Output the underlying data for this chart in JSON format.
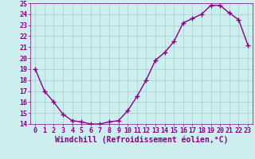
{
  "x": [
    0,
    1,
    2,
    3,
    4,
    5,
    6,
    7,
    8,
    9,
    10,
    11,
    12,
    13,
    14,
    15,
    16,
    17,
    18,
    19,
    20,
    21,
    22,
    23
  ],
  "y": [
    19.0,
    17.0,
    16.0,
    14.9,
    14.3,
    14.2,
    14.0,
    14.0,
    14.2,
    14.3,
    15.2,
    16.5,
    18.0,
    19.8,
    20.5,
    21.5,
    23.2,
    23.6,
    24.0,
    24.8,
    24.8,
    24.1,
    23.5,
    21.2
  ],
  "ylim": [
    14,
    25
  ],
  "xlim": [
    -0.5,
    23.5
  ],
  "yticks": [
    14,
    15,
    16,
    17,
    18,
    19,
    20,
    21,
    22,
    23,
    24,
    25
  ],
  "xticks": [
    0,
    1,
    2,
    3,
    4,
    5,
    6,
    7,
    8,
    9,
    10,
    11,
    12,
    13,
    14,
    15,
    16,
    17,
    18,
    19,
    20,
    21,
    22,
    23
  ],
  "line_color": "#880088",
  "marker": "+",
  "marker_size": 4,
  "marker_linewidth": 1.0,
  "bg_color": "#cceeee",
  "grid_color": "#aacccc",
  "xlabel": "Windchill (Refroidissement éolien,°C)",
  "xlabel_color": "#880088",
  "tick_color": "#880088",
  "tick_fontsize": 6,
  "xlabel_fontsize": 7,
  "linewidth": 1.0
}
